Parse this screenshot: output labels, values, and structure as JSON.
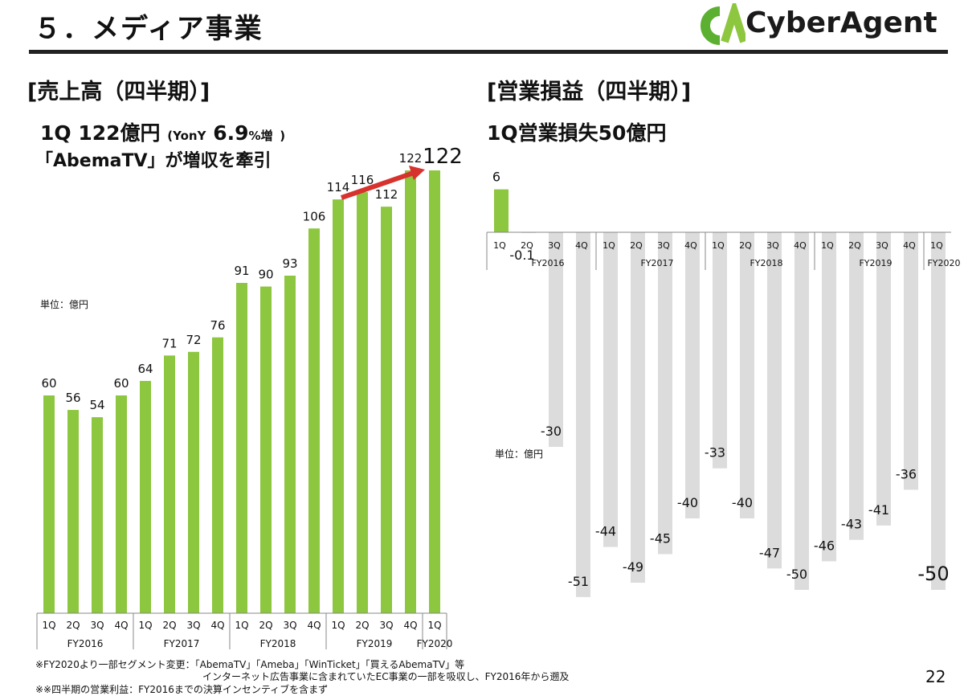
{
  "header": {
    "title": "５．メディア事業",
    "logo_text": "CyberAgent",
    "logo_mark": "CA",
    "page_number": "22",
    "colors": {
      "accent_green": "#8dc63f",
      "logo_green": "#5bb031",
      "arrow_red": "#d7322d",
      "loss_bar_gray": "#dcdcdc"
    }
  },
  "sections": {
    "sales": {
      "title": "[売上高（四半期）]",
      "headline_q": "1Q",
      "headline_value": "122億円",
      "headline_yoy_pre": "(YonY",
      "headline_yoy_val": "6.9",
      "headline_yoy_post": "%増",
      "headline_close": ")",
      "headline2": "「AbemaTV」が増収を牽引",
      "unit": "単位：億円",
      "latest_callout": "122"
    },
    "profit": {
      "title": "[営業損益（四半期）]",
      "headline": "1Q営業損失50億円",
      "unit": "単位：億円"
    }
  },
  "chart_data": [
    {
      "type": "bar",
      "title": "売上高（四半期）",
      "categories": [
        "1Q",
        "2Q",
        "3Q",
        "4Q",
        "1Q",
        "2Q",
        "3Q",
        "4Q",
        "1Q",
        "2Q",
        "3Q",
        "4Q",
        "1Q",
        "2Q",
        "3Q",
        "4Q",
        "1Q"
      ],
      "groups": [
        {
          "label": "FY2016",
          "count": 4
        },
        {
          "label": "FY2017",
          "count": 4
        },
        {
          "label": "FY2018",
          "count": 4
        },
        {
          "label": "FY2019",
          "count": 4
        },
        {
          "label": "FY2020",
          "count": 1
        }
      ],
      "values": [
        60,
        56,
        54,
        60,
        64,
        71,
        72,
        76,
        91,
        90,
        93,
        106,
        114,
        116,
        112,
        122,
        122
      ],
      "data_labels": [
        "60",
        "56",
        "54",
        "60",
        "64",
        "71",
        "72",
        "76",
        "91",
        "90",
        "93",
        "106",
        "114",
        "116",
        "112",
        "122",
        "122"
      ],
      "ylim": [
        0,
        122
      ],
      "bar_color": "#8dc63f",
      "grid": false
    },
    {
      "type": "bar",
      "title": "営業損益（四半期）",
      "categories": [
        "1Q",
        "2Q",
        "3Q",
        "4Q",
        "1Q",
        "2Q",
        "3Q",
        "4Q",
        "1Q",
        "2Q",
        "3Q",
        "4Q",
        "1Q",
        "2Q",
        "3Q",
        "4Q",
        "1Q"
      ],
      "groups": [
        {
          "label": "FY2016",
          "count": 4
        },
        {
          "label": "FY2017",
          "count": 4
        },
        {
          "label": "FY2018",
          "count": 4
        },
        {
          "label": "FY2019",
          "count": 4
        },
        {
          "label": "FY2020",
          "count": 1
        }
      ],
      "values": [
        6,
        -0.1,
        -30,
        -51,
        -44,
        -49,
        -45,
        -40,
        -33,
        -40,
        -47,
        -50,
        -46,
        -43,
        -41,
        -36,
        -50
      ],
      "data_labels": [
        "6",
        "-0.1",
        "-30",
        "-51",
        "-44",
        "-49",
        "-45",
        "-40",
        "-33",
        "-40",
        "-47",
        "-50",
        "-46",
        "-43",
        "-41",
        "-36",
        "-50"
      ],
      "ylim": [
        -51,
        6
      ],
      "positive_color": "#8dc63f",
      "negative_color": "#dcdcdc",
      "grid": false
    }
  ],
  "footnotes": [
    "※FY2020より一部セグメント変更：「AbemaTV」「Ameba」「WinTicket」「買えるAbemaTV」等",
    "インターネット広告事業に含まれていたEC事業の一部を吸収し、FY2016年から遡及",
    "※※四半期の営業利益：FY2016までの決算インセンティブを含まず"
  ]
}
